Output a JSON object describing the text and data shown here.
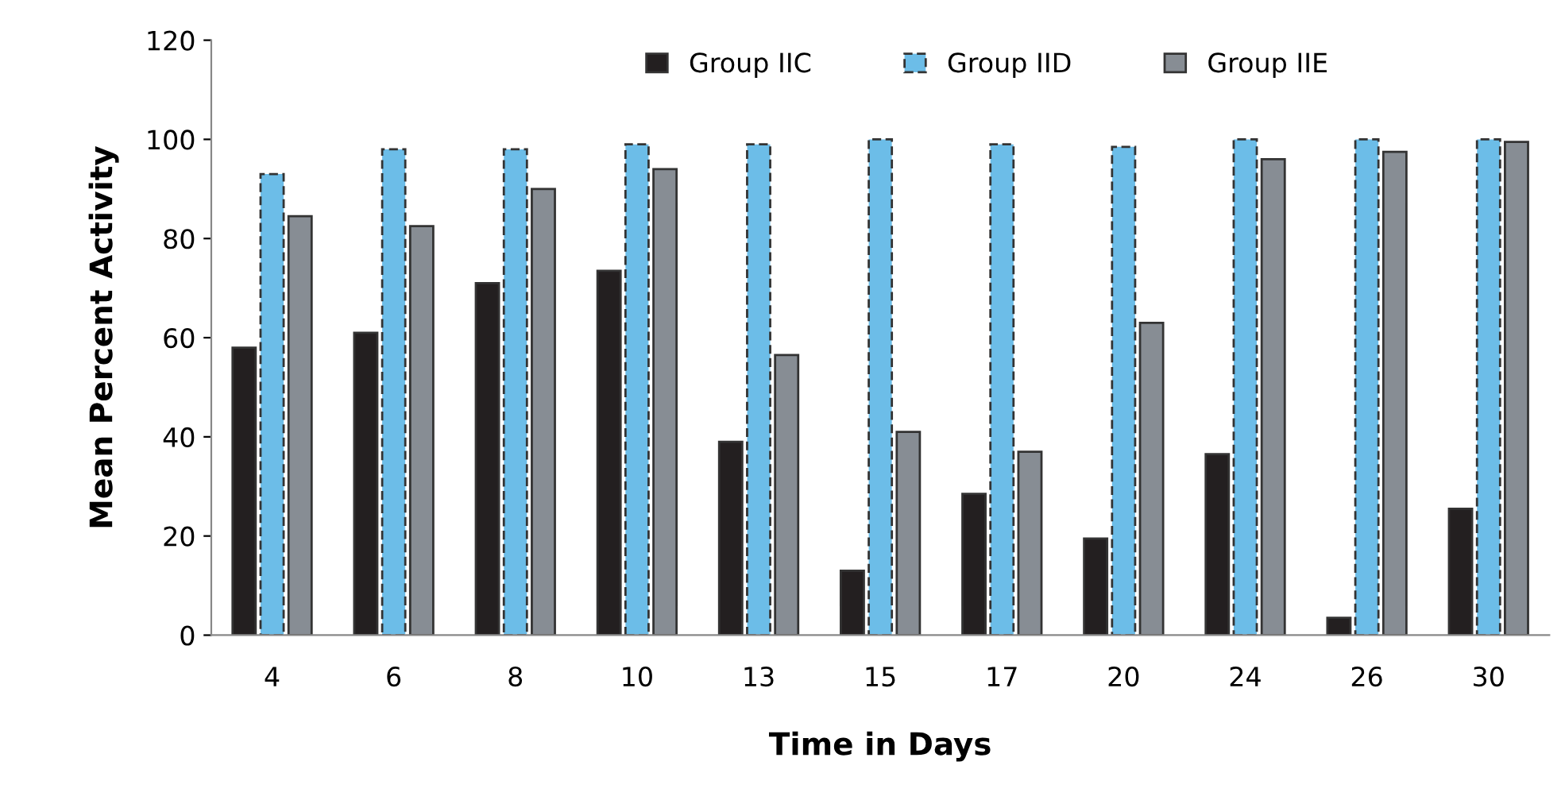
{
  "chart_data": {
    "type": "bar",
    "xlabel": "Time in Days",
    "ylabel": "Mean Percent Activity",
    "categories": [
      "4",
      "6",
      "8",
      "10",
      "13",
      "15",
      "17",
      "20",
      "24",
      "26",
      "30"
    ],
    "series": [
      {
        "name": "Group IIC",
        "color": "#231f20",
        "values": [
          58,
          61,
          71,
          73.5,
          39,
          13,
          28.5,
          19.5,
          36.5,
          3.5,
          25.5
        ]
      },
      {
        "name": "Group IID",
        "color": "#6cbde8",
        "line_style": "dashed",
        "values": [
          93,
          98,
          98,
          99,
          99,
          100,
          99,
          98.5,
          100,
          100,
          100
        ]
      },
      {
        "name": "Group IIE",
        "color": "#878d94",
        "values": [
          84.5,
          82.5,
          90,
          94,
          56.5,
          41,
          37,
          63,
          96,
          97.5,
          99.5
        ]
      }
    ],
    "ylim": [
      0,
      120
    ],
    "yticks": [
      0,
      20,
      40,
      60,
      80,
      100,
      120
    ],
    "grid": false,
    "legend": "top"
  }
}
